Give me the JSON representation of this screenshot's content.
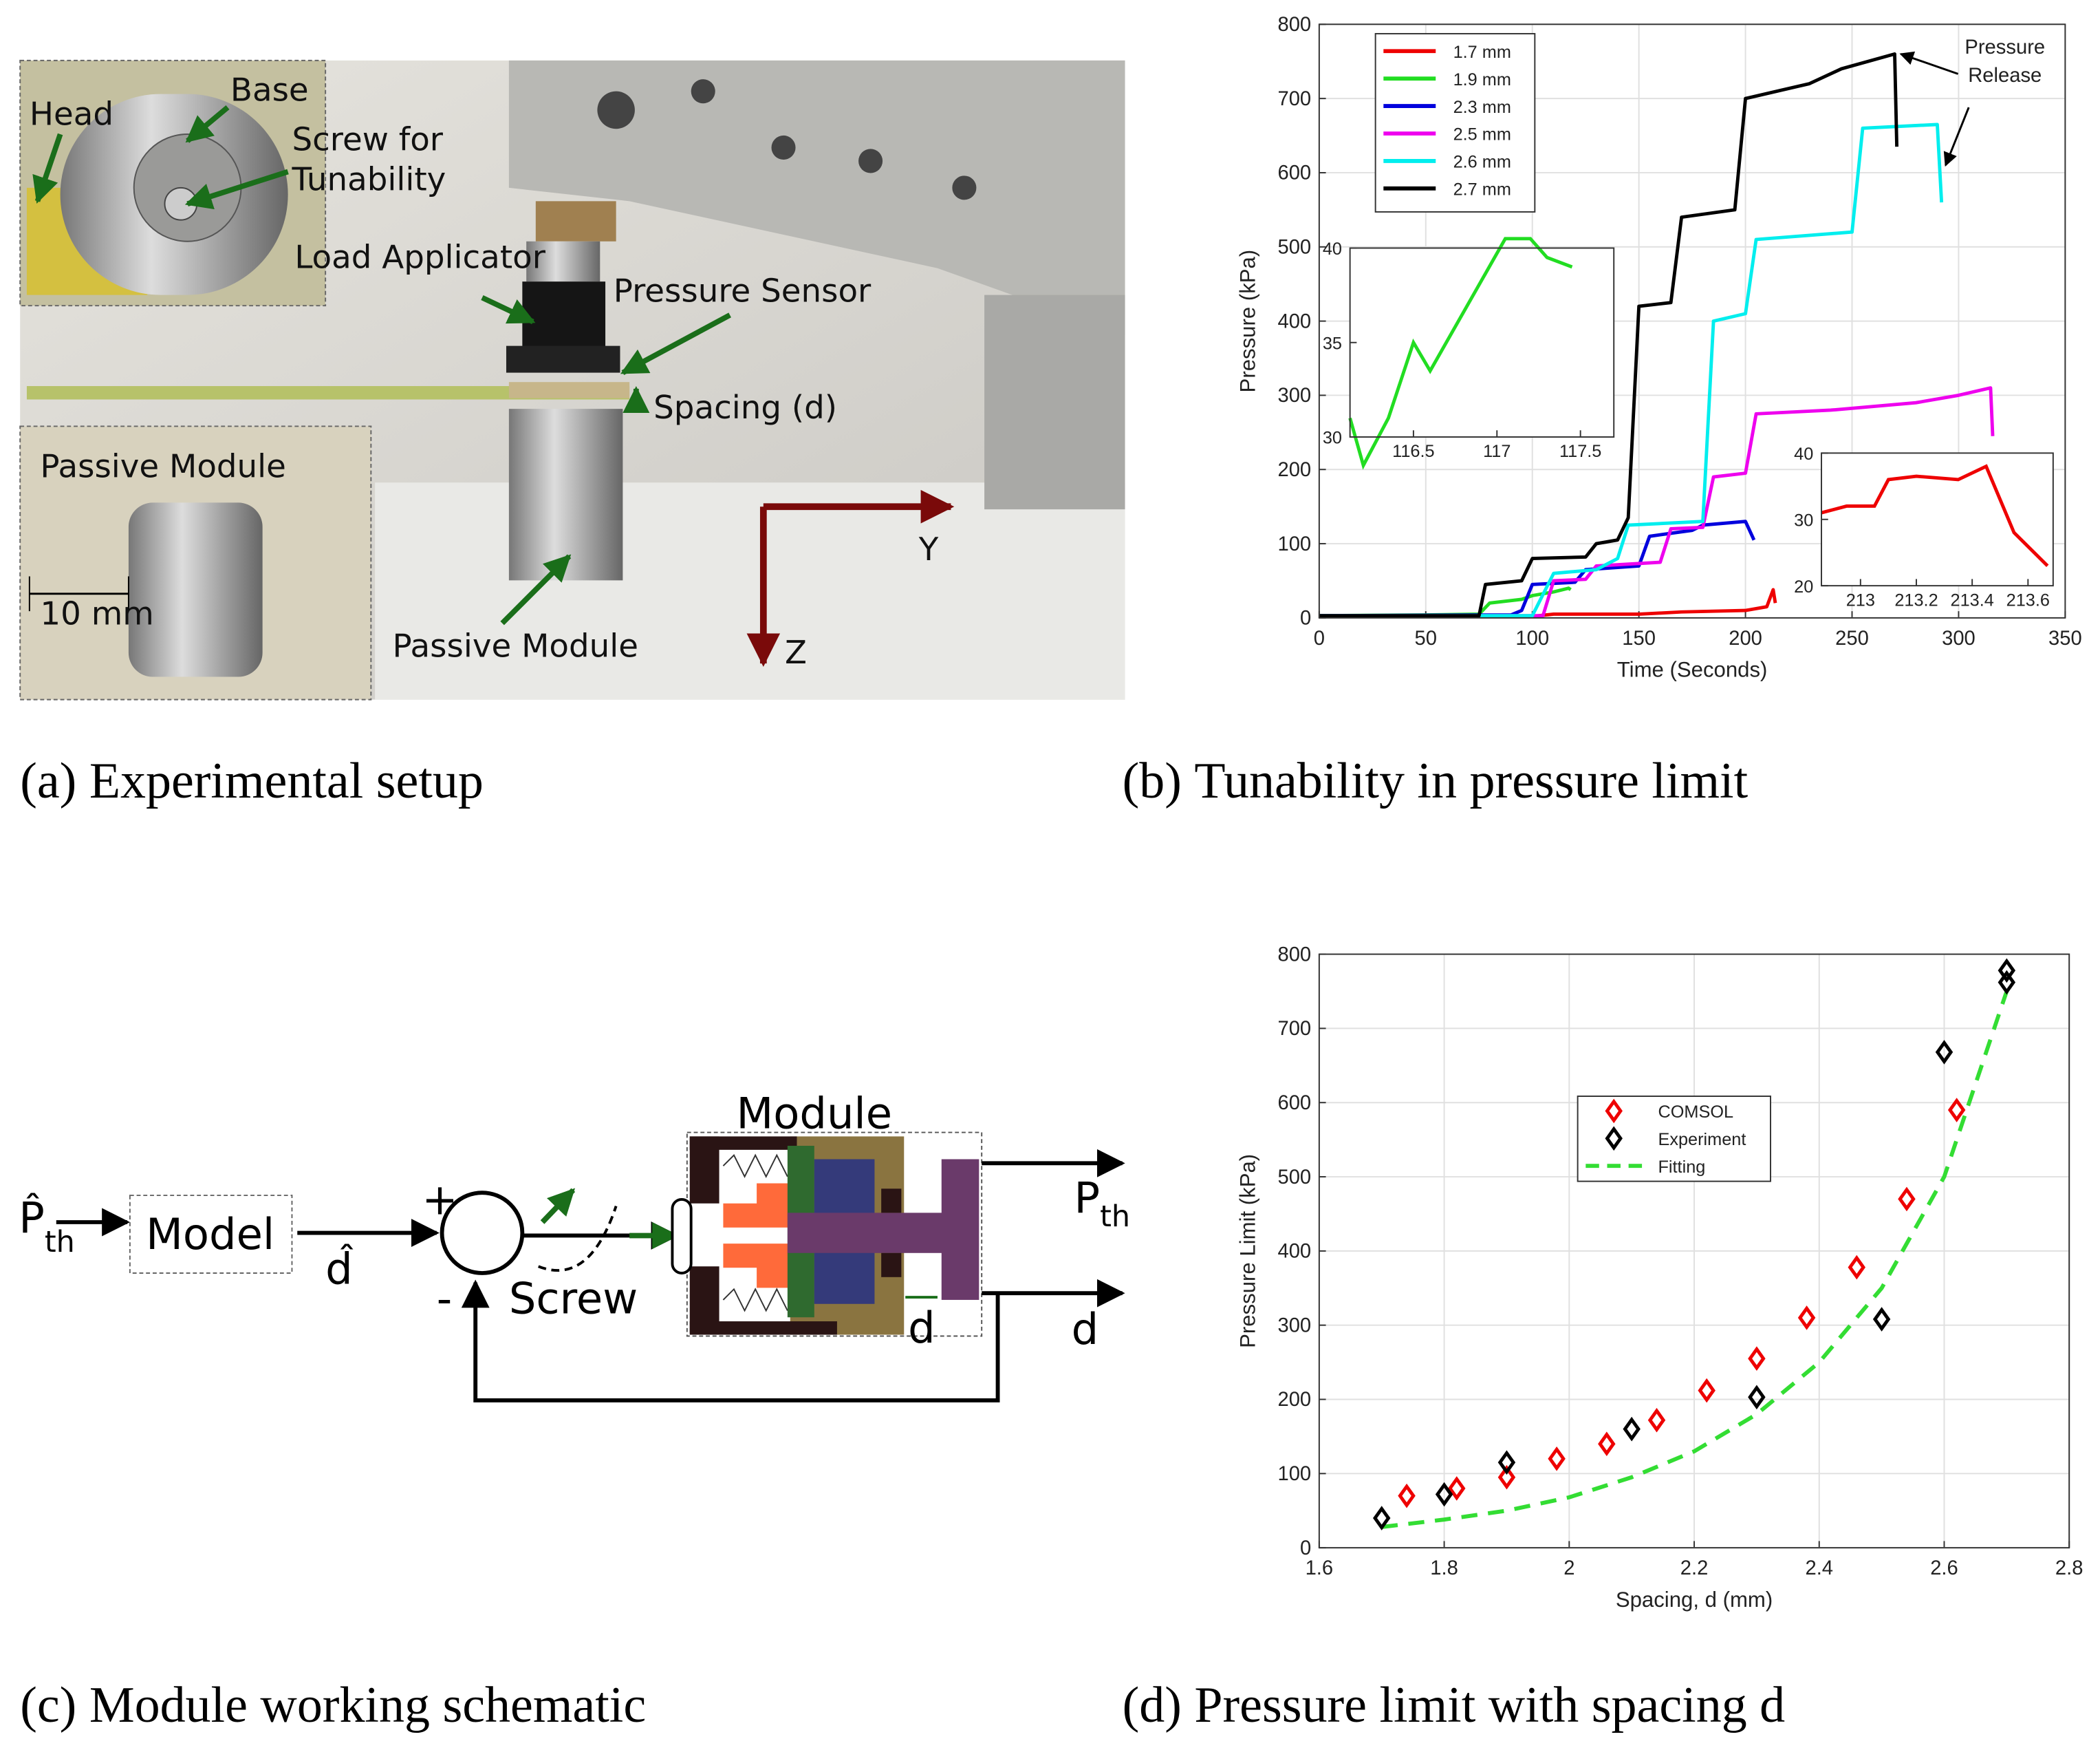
{
  "photo": {
    "labels": {
      "head": "Head",
      "base": "Base",
      "screw": [
        "Screw for",
        "Tunability"
      ],
      "load_applicator": "Load Applicator",
      "pressure_sensor": "Pressure Sensor",
      "spacing": "Spacing (d)",
      "inset_module": "Passive Module",
      "scale": "10 mm",
      "module": "Passive Module",
      "axis_y": "Y",
      "axis_z": "Z"
    }
  },
  "chart_data": [
    {
      "type": "line",
      "xlabel": "Time (Seconds)",
      "ylabel": "Pressure (kPa)",
      "xlim": [
        0,
        350
      ],
      "ylim": [
        0,
        800
      ],
      "xticks": [
        0,
        50,
        100,
        150,
        200,
        250,
        300,
        350
      ],
      "yticks": [
        0,
        100,
        200,
        300,
        400,
        500,
        600,
        700,
        800
      ],
      "grid": true,
      "legend": "upper-left",
      "series": [
        {
          "name": "1.7 mm",
          "color": "#ee0000",
          "x": [
            0,
            50,
            100,
            110,
            150,
            170,
            200,
            210,
            213,
            214
          ],
          "values": [
            2,
            3,
            2,
            5,
            5,
            8,
            10,
            15,
            38,
            20
          ]
        },
        {
          "name": "1.9 mm",
          "color": "#22dd22",
          "x": [
            0,
            50,
            75,
            80,
            95,
            100,
            110,
            117,
            118
          ],
          "values": [
            3,
            4,
            5,
            20,
            25,
            30,
            35,
            40,
            38
          ]
        },
        {
          "name": "2.3 mm",
          "color": "#0000dd",
          "x": [
            0,
            90,
            95,
            100,
            120,
            125,
            150,
            155,
            175,
            180,
            200,
            204
          ],
          "values": [
            3,
            4,
            10,
            45,
            48,
            65,
            70,
            110,
            118,
            125,
            130,
            105
          ]
        },
        {
          "name": "2.5 mm",
          "color": "#ee00ee",
          "x": [
            0,
            105,
            110,
            125,
            130,
            160,
            165,
            180,
            185,
            200,
            205,
            240,
            280,
            300,
            315,
            316
          ],
          "values": [
            3,
            3,
            50,
            52,
            70,
            75,
            120,
            122,
            190,
            195,
            275,
            280,
            290,
            300,
            310,
            245
          ]
        },
        {
          "name": "2.6 mm",
          "color": "#00eeee",
          "x": [
            0,
            100,
            110,
            130,
            140,
            145,
            180,
            185,
            200,
            205,
            250,
            255,
            290,
            292
          ],
          "values": [
            3,
            3,
            60,
            65,
            80,
            125,
            130,
            400,
            410,
            510,
            520,
            660,
            665,
            560
          ]
        },
        {
          "name": "2.7 mm",
          "color": "#000000",
          "x": [
            0,
            75,
            78,
            95,
            100,
            125,
            130,
            140,
            145,
            150,
            165,
            170,
            195,
            200,
            215,
            230,
            245,
            270,
            271
          ],
          "values": [
            3,
            3,
            45,
            50,
            80,
            82,
            100,
            105,
            135,
            420,
            425,
            540,
            550,
            700,
            710,
            720,
            740,
            760,
            635
          ]
        }
      ],
      "insets": [
        {
          "color": "#22dd22",
          "xlim": [
            116.12,
            117.7
          ],
          "ylim": [
            30,
            40
          ],
          "xticks": [
            116.5,
            117,
            117.5
          ],
          "yticks": [
            30,
            35,
            40
          ],
          "x": [
            116.12,
            116.2,
            116.35,
            116.5,
            116.6,
            117.05,
            117.2,
            117.3,
            117.45
          ],
          "values": [
            31,
            28.5,
            31,
            35,
            33.5,
            40.5,
            40.5,
            39.5,
            39
          ]
        },
        {
          "color": "#ee0000",
          "xlim": [
            212.86,
            213.69
          ],
          "ylim": [
            20,
            40
          ],
          "xticks": [
            213,
            213.2,
            213.4,
            213.6
          ],
          "yticks": [
            20,
            30,
            40
          ],
          "x": [
            212.86,
            212.95,
            213.05,
            213.1,
            213.2,
            213.35,
            213.45,
            213.55,
            213.67
          ],
          "values": [
            31,
            32,
            32,
            36,
            36.5,
            36,
            38,
            28,
            23
          ]
        }
      ],
      "annotation": {
        "lines": [
          "Pressure",
          "Release"
        ],
        "targets": [
          {
            "x": 271,
            "y": 760
          },
          {
            "x": 292,
            "y": 610
          }
        ]
      }
    },
    {
      "type": "scatter",
      "xlabel": "Spacing, d (mm)",
      "ylabel": "Pressure Limit (kPa)",
      "xlim": [
        1.6,
        2.8
      ],
      "ylim": [
        0,
        800
      ],
      "xticks": [
        1.6,
        1.8,
        2,
        2.2,
        2.4,
        2.6,
        2.8
      ],
      "yticks": [
        0,
        100,
        200,
        300,
        400,
        500,
        600,
        700,
        800
      ],
      "grid": true,
      "legend": "center",
      "series": [
        {
          "name": "COMSOL",
          "color": "#ee0000",
          "marker": "diamond",
          "x": [
            1.74,
            1.82,
            1.9,
            1.98,
            2.06,
            2.14,
            2.22,
            2.3,
            2.38,
            2.46,
            2.54,
            2.62
          ],
          "values": [
            70,
            80,
            95,
            120,
            140,
            172,
            212,
            255,
            310,
            378,
            470,
            590
          ]
        },
        {
          "name": "Experiment",
          "color": "#000000",
          "marker": "diamond",
          "x": [
            1.7,
            1.8,
            1.9,
            2.1,
            2.3,
            2.5,
            2.6,
            2.7,
            2.7
          ],
          "values": [
            40,
            72,
            115,
            160,
            203,
            308,
            668,
            778,
            762
          ]
        },
        {
          "name": "Fitting",
          "color": "#33dd33",
          "line": "dashed",
          "x": [
            1.7,
            1.8,
            1.9,
            2.0,
            2.1,
            2.2,
            2.3,
            2.4,
            2.5,
            2.6,
            2.7
          ],
          "values": [
            28,
            38,
            50,
            68,
            95,
            130,
            180,
            250,
            350,
            500,
            750
          ]
        }
      ]
    }
  ],
  "diagram": {
    "input": {
      "symbol": "P̂",
      "subscript": "th"
    },
    "model": "Model",
    "estimate": "d̂",
    "plus": "+",
    "minus": "-",
    "screw": "Screw",
    "module": "Module",
    "output_p": {
      "symbol": "P",
      "subscript": "th"
    },
    "output_d": "d",
    "spacing": "d"
  },
  "captions": [
    {
      "label": "(a)",
      "text": "Experimental setup"
    },
    {
      "label": "(b)",
      "text": "Tunability in pressure limit"
    },
    {
      "label": "(c)",
      "text": "Module working schematic"
    },
    {
      "label": "(d)",
      "text": "Pressure limit with spacing d"
    }
  ]
}
